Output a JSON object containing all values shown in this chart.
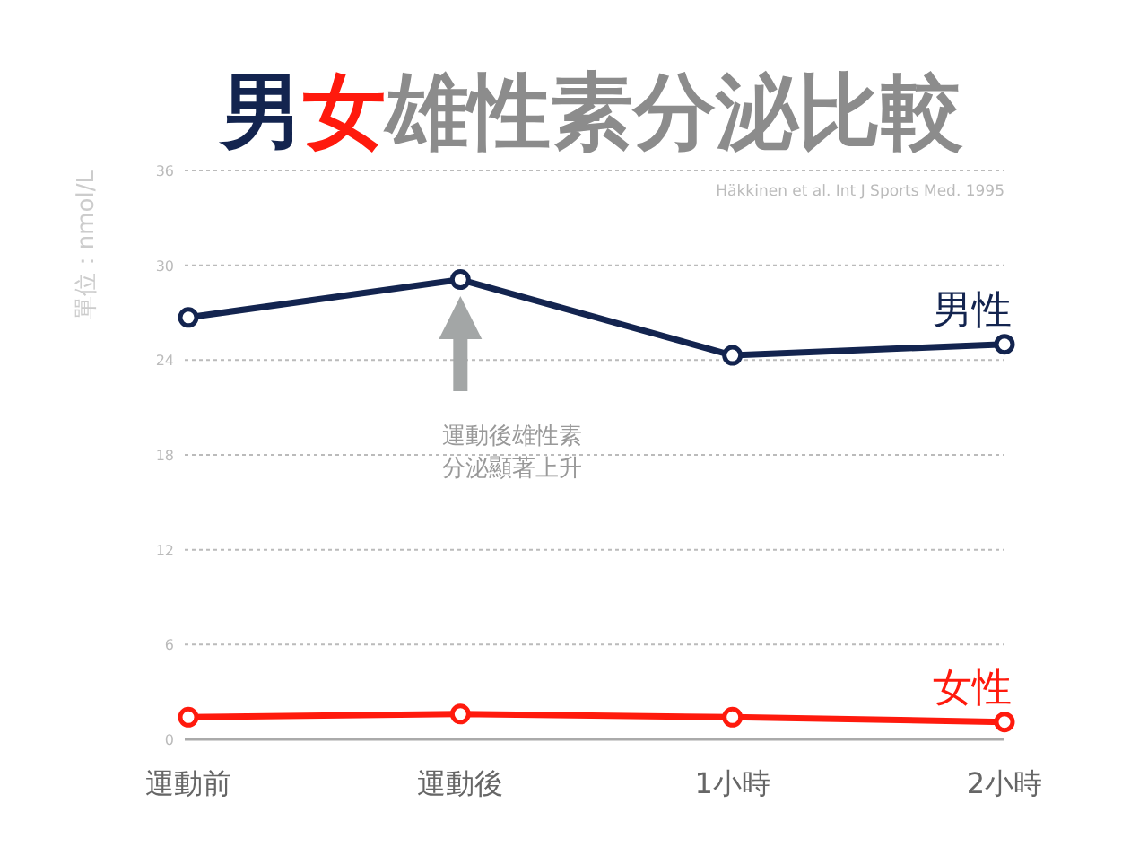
{
  "chart_data": {
    "type": "line",
    "title": "男女雄性素分泌比較",
    "ylabel": "單位：nmol/L",
    "categories": [
      "運動前",
      "運動後",
      "1小時",
      "2小時"
    ],
    "series": [
      {
        "name": "男性",
        "color": "#13244f",
        "values": [
          26.7,
          29.1,
          24.3,
          25.0
        ]
      },
      {
        "name": "女性",
        "color": "#ff1a0d",
        "values": [
          1.4,
          1.6,
          1.4,
          1.1
        ]
      }
    ],
    "ylim": [
      0,
      36
    ],
    "yticks": [
      0,
      6,
      12,
      18,
      24,
      30,
      36
    ],
    "grid": "y",
    "marker": "circle",
    "line_style": "solid",
    "annotations": [
      "Häkkinen et al. Int J Sports Med. 1995",
      "運動後雄性素分泌顯著上升"
    ]
  }
}
